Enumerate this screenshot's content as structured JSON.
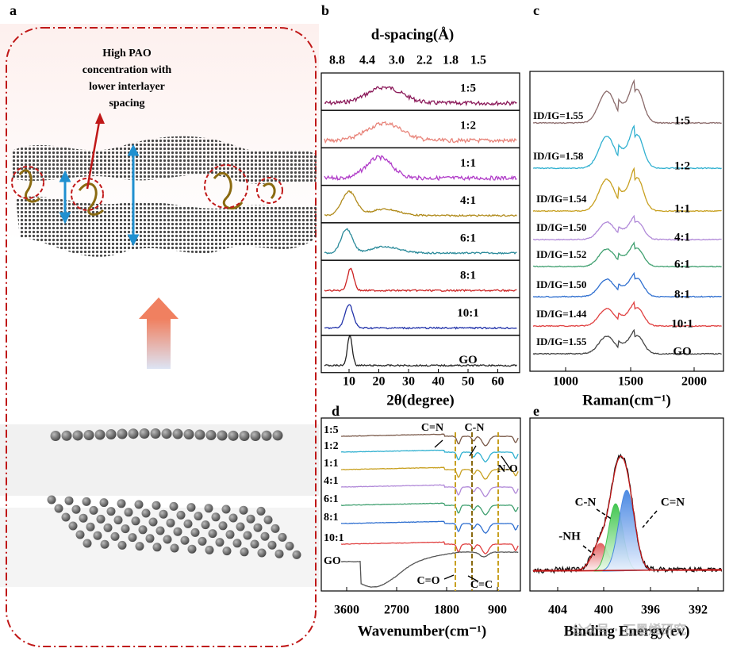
{
  "watermark": "公众号 · 石墨烯研究",
  "panel_a": {
    "label": "a",
    "annotation": [
      "High PAO",
      "concentration with",
      "lower interlayer",
      "spacing"
    ]
  },
  "panel_b": {
    "label": "b",
    "top_title": "d-spacing(Å)",
    "top_ticks": [
      "8.8",
      "4.4",
      "3.0",
      "2.2",
      "1.8",
      "1.5"
    ],
    "x_ticks": [
      "10",
      "20",
      "30",
      "40",
      "50",
      "60"
    ],
    "x_title": "2θ(degree)",
    "samples": [
      "1:5",
      "1:2",
      "1:1",
      "4:1",
      "6:1",
      "8:1",
      "10:1",
      "GO"
    ],
    "colors": [
      "#8b1a5a",
      "#e8847a",
      "#b03cc8",
      "#b08a1a",
      "#2a8a9a",
      "#cc2222",
      "#2233aa",
      "#222222"
    ]
  },
  "panel_c": {
    "label": "c",
    "x_ticks": [
      "1000",
      "1500",
      "2000"
    ],
    "x_title": "Raman(cm⁻¹)",
    "samples": [
      "1:5",
      "1:2",
      "1:1",
      "4:1",
      "6:1",
      "8:1",
      "10:1",
      "GO"
    ],
    "ratios": [
      "ID/IG=1.55",
      "ID/IG=1.58",
      "ID/IG=1.54",
      "ID/IG=1.50",
      "ID/IG=1.52",
      "ID/IG=1.50",
      "ID/IG=1.44",
      "ID/IG=1.55"
    ],
    "colors": [
      "#8a6a6a",
      "#30b0d0",
      "#c8a020",
      "#b088d8",
      "#40a070",
      "#3070d0",
      "#e04040",
      "#444444"
    ]
  },
  "panel_d": {
    "label": "d",
    "samples": [
      "1:5",
      "1:2",
      "1:1",
      "4:1",
      "6:1",
      "8:1",
      "10:1",
      "GO"
    ],
    "annotations": [
      "C=N",
      "C-N",
      "N-O",
      "C=O",
      "C=C"
    ],
    "x_ticks": [
      "3600",
      "2700",
      "1800",
      "900"
    ],
    "x_title": "Wavenumber(cm⁻¹)",
    "colors": [
      "#7a5a4a",
      "#30b0d0",
      "#c8a020",
      "#b088d8",
      "#40a070",
      "#3070d0",
      "#e04040",
      "#555555"
    ]
  },
  "panel_e": {
    "label": "e",
    "annotations": [
      "C-N",
      "C=N",
      "-NH"
    ],
    "x_ticks": [
      "404",
      "400",
      "396",
      "392"
    ],
    "x_title": "Binding Energy(ev)"
  }
}
